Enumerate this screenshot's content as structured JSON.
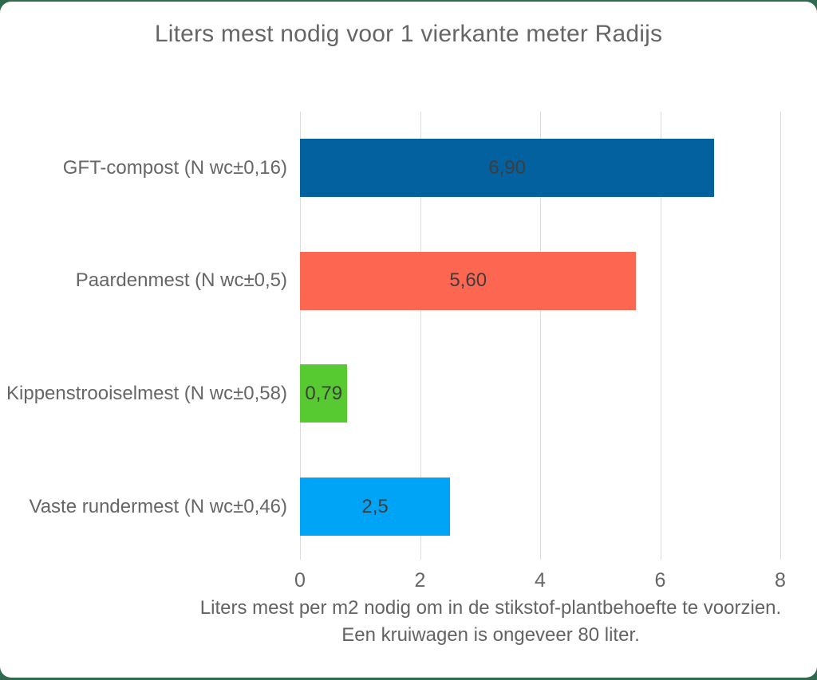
{
  "frame": {
    "border_color": "#2f6a4f",
    "card_background": "#ffffff"
  },
  "chart_data": {
    "type": "bar",
    "orientation": "horizontal",
    "title": "Liters mest nodig voor 1 vierkante meter Radijs",
    "categories": [
      "GFT-compost (N wc±0,16)",
      "Paardenmest (N wc±0,5)",
      "Kippenstrooiselmest (N wc±0,58)",
      "Vaste rundermest (N wc±0,46)"
    ],
    "values": [
      6.9,
      5.6,
      0.79,
      2.5
    ],
    "value_labels": [
      "6,90",
      "5,60",
      "0,79",
      "2,5"
    ],
    "bar_colors": [
      "#02619e",
      "#fd6651",
      "#57c931",
      "#00a4f6"
    ],
    "x_ticks": [
      "0",
      "2",
      "4",
      "6",
      "8"
    ],
    "x_tick_values": [
      0,
      2,
      4,
      6,
      8
    ],
    "xlim": [
      0,
      8
    ],
    "grid": true,
    "legend": "none",
    "xlabel_line1": "Liters mest per m2 nodig om in de stikstof-plantbehoefte te voorzien.",
    "xlabel_line2": "Een kruiwagen is ongeveer 80 liter.",
    "text_colors": {
      "title": "#666666",
      "category_labels": "#666666",
      "value_labels": "#3d3d3d",
      "tick_labels": "#666666",
      "caption": "#636363"
    }
  }
}
